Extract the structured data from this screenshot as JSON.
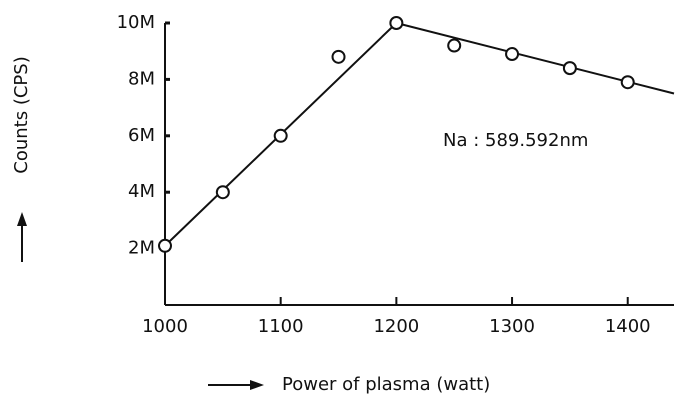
{
  "chart_data": {
    "type": "scatter",
    "ylabel": "Counts (CPS)",
    "xlabel": "Power of plasma (watt)",
    "annotation": "Na : 589.592nm",
    "x": [
      1000,
      1050,
      1100,
      1150,
      1200,
      1250,
      1300,
      1350,
      1400
    ],
    "values": [
      2100000,
      4000000,
      6000000,
      8800000,
      10000000,
      9200000,
      8900000,
      8400000,
      7900000
    ],
    "color": "#111111",
    "fit": {
      "x": [
        1000,
        1200,
        1440
      ],
      "values": [
        2100000,
        10000000,
        7500000
      ]
    },
    "xlim": [
      1000,
      1440
    ],
    "ylim": [
      0,
      10000000
    ],
    "xticks": [
      1000,
      1100,
      1200,
      1300,
      1400
    ],
    "yticks": [
      {
        "value": 2000000,
        "label": "2M"
      },
      {
        "value": 4000000,
        "label": "4M"
      },
      {
        "value": 6000000,
        "label": "6M"
      },
      {
        "value": 8000000,
        "label": "8M"
      },
      {
        "value": 10000000,
        "label": "10M"
      }
    ],
    "grid": false
  }
}
